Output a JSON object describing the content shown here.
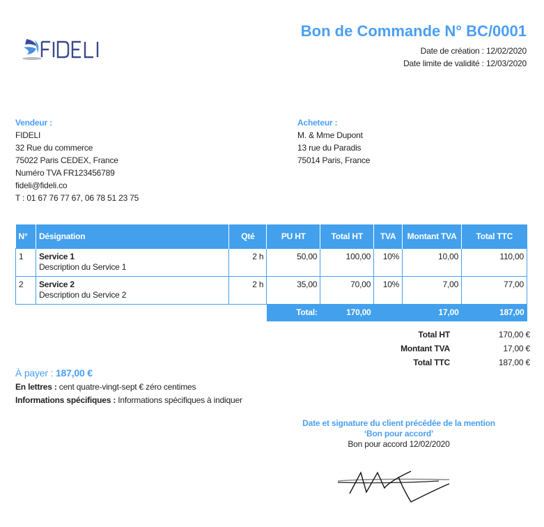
{
  "logo": {
    "text": "FIDELI"
  },
  "header": {
    "title": "Bon de Commande N° BC/0001",
    "created_label": "Date de création :",
    "created": "12/02/2020",
    "valid_label": "Date limite de validité :",
    "valid": "12/03/2020"
  },
  "seller": {
    "label": "Vendeur :",
    "lines": [
      "FIDELI",
      "32 Rue du commerce",
      "75022 Paris CEDEX, France",
      "Numéro TVA FR123456789",
      "fideli@fideli.co",
      "T : 01 67 76 77 67, 06 78 51 23 75"
    ]
  },
  "buyer": {
    "label": "Acheteur :",
    "lines": [
      "M. & Mme Dupont",
      "13 rue du Paradis",
      "75014 Paris, France"
    ]
  },
  "table": {
    "headers": [
      "N°",
      "Désignation",
      "Qté",
      "PU HT",
      "Total HT",
      "TVA",
      "Montant TVA",
      "Total TTC"
    ],
    "rows": [
      {
        "n": "1",
        "name": "Service 1",
        "desc": "Description du Service 1",
        "qty": "2 h",
        "pu": "50,00",
        "ht": "100,00",
        "tva": "10%",
        "mtva": "10,00",
        "ttc": "110,00"
      },
      {
        "n": "2",
        "name": "Service 2",
        "desc": "Description du Service 2",
        "qty": "2 h",
        "pu": "35,00",
        "ht": "70,00",
        "tva": "10%",
        "mtva": "7,00",
        "ttc": "77,00"
      }
    ],
    "total": {
      "label": "Total:",
      "ht": "170,00",
      "mtva": "17,00",
      "ttc": "187,00"
    }
  },
  "summary": [
    {
      "k": "Total HT",
      "v": "170,00 €"
    },
    {
      "k": "Montant TVA",
      "v": "17,00 €"
    },
    {
      "k": "Total TTC",
      "v": "187,00 €"
    }
  ],
  "pay": {
    "label": "À payer :",
    "amount": "187,00 €"
  },
  "words": {
    "label": "En lettres :",
    "value": "cent quatre-vingt-sept € zéro centimes"
  },
  "specific": {
    "label": "Informations spécifiques :",
    "value": "Informations spécifiques à indiquer"
  },
  "signature": {
    "heading": "Date et signature du client précédée de la mention ‘Bon pour accord’",
    "text": "Bon pour accord 12/02/2020"
  },
  "colors": {
    "accent": "#4a9ff5",
    "table_header": "#42a0ed",
    "logo": "#3a4a8a"
  }
}
